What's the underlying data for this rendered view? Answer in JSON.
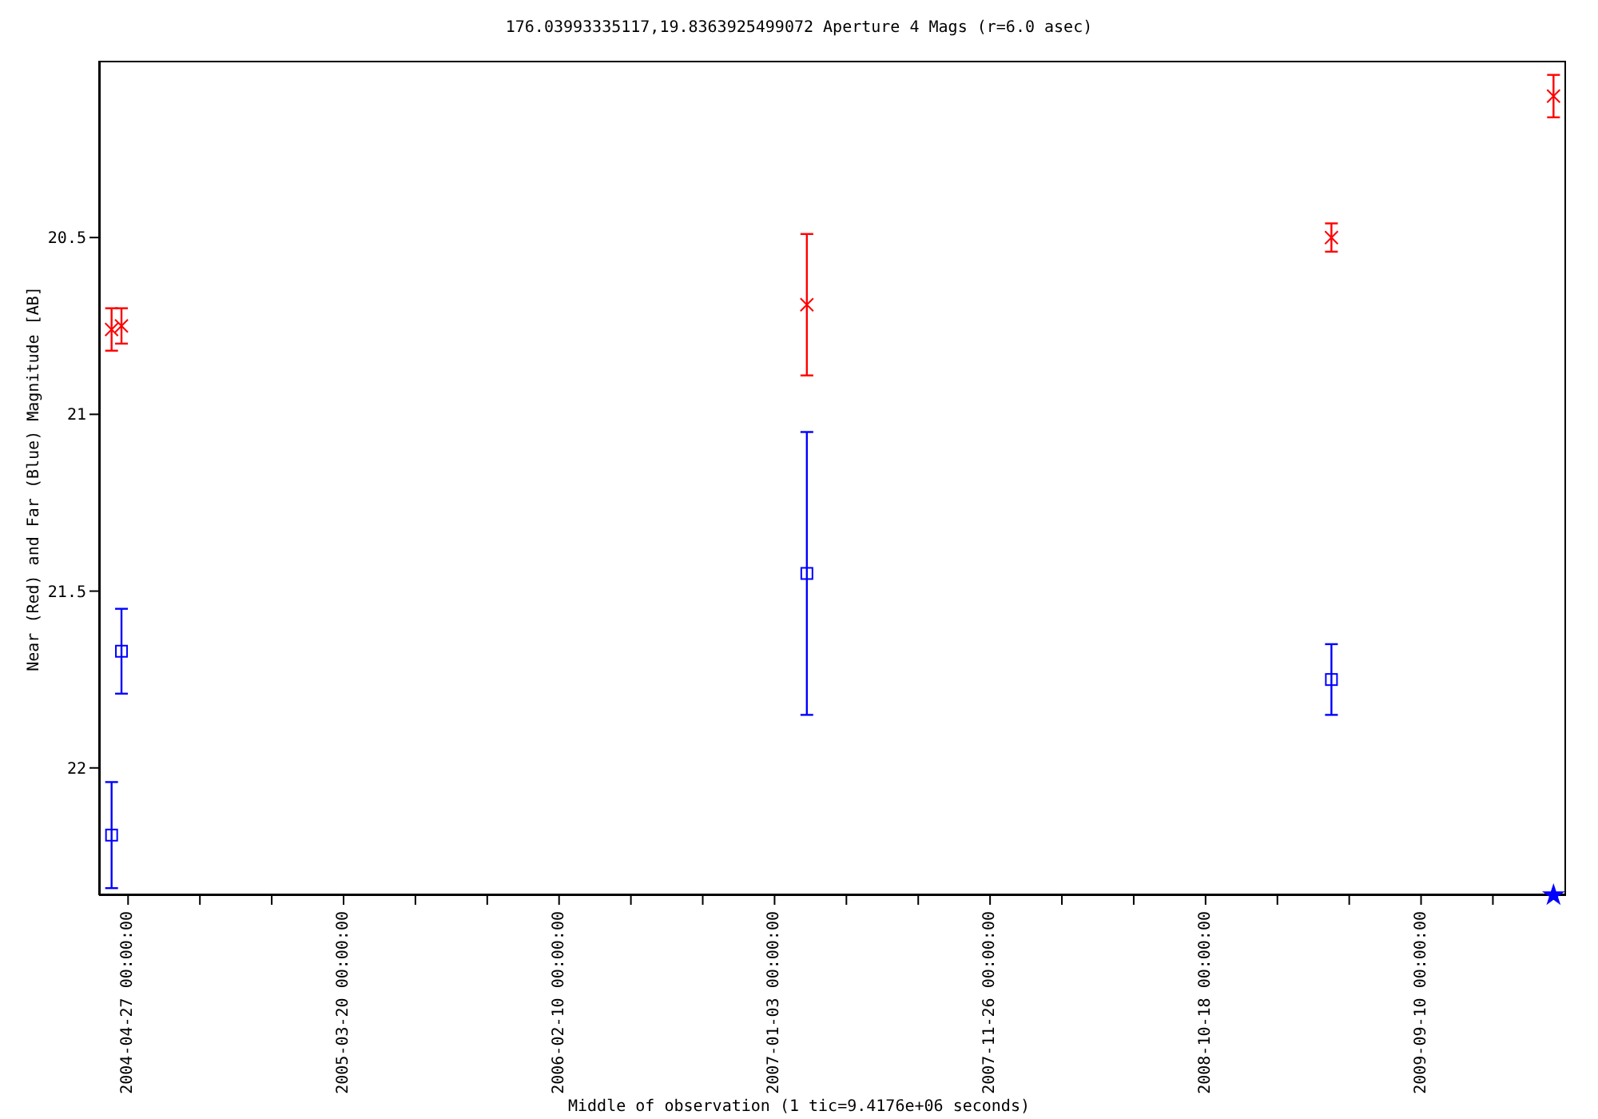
{
  "chart_data": {
    "type": "scatter",
    "title": "176.03993335117,19.8363925499072   Aperture 4 Mags (r=6.0 asec)",
    "xlabel": "Middle of observation (1 tic=9.4176e+06 seconds)",
    "ylabel": "Near (Red) and Far (Blue) Magnitude [AB]",
    "xlim": [
      "2004-03-14",
      "2010-04-18"
    ],
    "xticks": [
      {
        "value": "2004-04-27",
        "label": "2004-04-27 00:00:00"
      },
      {
        "value": "2004-08-14",
        "label": null
      },
      {
        "value": "2004-12-01",
        "label": null
      },
      {
        "value": "2005-03-20",
        "label": "2005-03-20 00:00:00"
      },
      {
        "value": "2005-07-07",
        "label": null
      },
      {
        "value": "2005-10-24",
        "label": null
      },
      {
        "value": "2006-02-10",
        "label": "2006-02-10 00:00:00"
      },
      {
        "value": "2006-05-30",
        "label": null
      },
      {
        "value": "2006-09-16",
        "label": null
      },
      {
        "value": "2007-01-03",
        "label": "2007-01-03 00:00:00"
      },
      {
        "value": "2007-04-22",
        "label": null
      },
      {
        "value": "2007-08-09",
        "label": null
      },
      {
        "value": "2007-11-26",
        "label": "2007-11-26 00:00:00"
      },
      {
        "value": "2008-03-14",
        "label": null
      },
      {
        "value": "2008-07-01",
        "label": null
      },
      {
        "value": "2008-10-18",
        "label": "2008-10-18 00:00:00"
      },
      {
        "value": "2009-02-04",
        "label": null
      },
      {
        "value": "2009-05-24",
        "label": null
      },
      {
        "value": "2009-09-10",
        "label": "2009-09-10 00:00:00"
      },
      {
        "value": "2009-12-28",
        "label": null
      }
    ],
    "ylim": [
      22.36,
      20.0
    ],
    "yticks": [
      20.5,
      21,
      21.5,
      22
    ],
    "grid": false,
    "legend": false,
    "series": [
      {
        "color": "#ff0000",
        "marker": "cross",
        "x": [
          "2004-04-02",
          "2004-04-17",
          "2007-02-21",
          "2009-04-27",
          "2010-03-30"
        ],
        "values": [
          20.76,
          20.75,
          20.69,
          20.5,
          20.1
        ],
        "errors": [
          0.06,
          0.05,
          0.2,
          0.04,
          0.06
        ]
      },
      {
        "color": "#0000ff",
        "marker": "square",
        "x": [
          "2004-04-02",
          "2004-04-17",
          "2007-02-21",
          "2009-04-27"
        ],
        "values": [
          22.19,
          21.67,
          21.45,
          21.75
        ],
        "errors": [
          0.15,
          0.12,
          0.4,
          0.1
        ]
      },
      {
        "color": "#0000ff",
        "marker": "star",
        "x": [
          "2010-03-30"
        ],
        "values": [
          22.36
        ]
      }
    ]
  }
}
